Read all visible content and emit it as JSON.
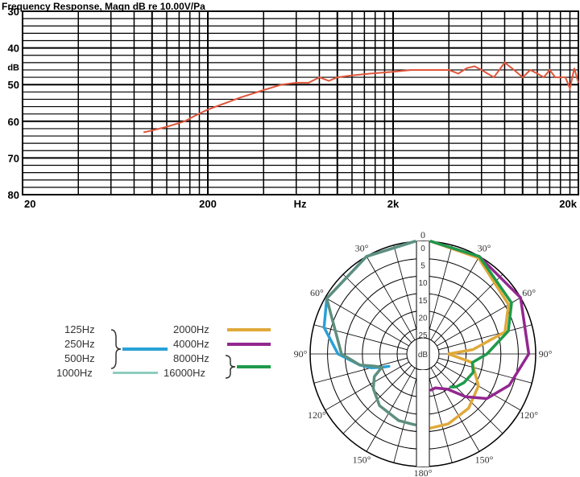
{
  "chart_data": [
    {
      "type": "line",
      "title": "Frequency Response, Magn dB re 10.00V/Pa",
      "xlabel": "Hz",
      "ylabel": "dB",
      "x_scale": "log",
      "xlim": [
        20,
        20000
      ],
      "ylim": [
        80,
        30
      ],
      "x_ticks": [
        "20",
        "200",
        "Hz",
        "2k",
        "20k"
      ],
      "y_ticks": [
        "30",
        "40",
        "dB",
        "50",
        "60",
        "70",
        "80"
      ],
      "grid": true,
      "color": "#e0563a",
      "series": [
        {
          "x": [
            90,
            100,
            120,
            150,
            170,
            200,
            250,
            300,
            400,
            500,
            600,
            700,
            800,
            900,
            1000,
            1200,
            1500,
            2000,
            2500,
            3000,
            3500,
            4000,
            4500,
            5000,
            5500,
            6000,
            7000,
            8000,
            9000,
            10000,
            11000,
            12000,
            13000,
            14000,
            15000,
            16000,
            17000,
            18000,
            19000,
            20000
          ],
          "y": [
            63,
            62.5,
            61.5,
            60,
            58.5,
            56.8,
            55,
            53.5,
            51.5,
            50,
            49.5,
            49.5,
            48,
            49,
            48,
            47.5,
            47,
            46.5,
            46,
            46,
            46,
            46,
            47,
            45.5,
            45,
            46,
            48,
            44,
            46,
            48,
            46,
            47,
            48,
            46,
            48,
            48,
            48,
            51,
            45.5,
            49.5
          ]
        }
      ]
    },
    {
      "type": "polar",
      "radial_unit": "dB",
      "radial_ticks": [
        "0",
        "5",
        "10",
        "15",
        "20",
        "25",
        "dB"
      ],
      "angle_labels": [
        "0",
        "30°",
        "60°",
        "90°",
        "120°",
        "150°",
        "180°",
        "150°",
        "120°",
        "90°",
        "60°",
        "30°"
      ],
      "series": [
        {
          "name": "125Hz, 250Hz, 500Hz",
          "color": "#2aa1d6",
          "side": "left",
          "points": [
            [
              0,
              0
            ],
            [
              30,
              0
            ],
            [
              60,
              0.5
            ],
            [
              75,
              3
            ],
            [
              90,
              8
            ],
            [
              100,
              14
            ],
            [
              105,
              17
            ],
            [
              108,
              20
            ],
            [
              110,
              22
            ]
          ]
        },
        {
          "name": "1000Hz",
          "color": "#5e8f7e",
          "side": "left",
          "points": [
            [
              0,
              0
            ],
            [
              30,
              0
            ],
            [
              60,
              0.5
            ],
            [
              90,
              9
            ],
            [
              100,
              14
            ],
            [
              104,
              18
            ],
            [
              108,
              20
            ],
            [
              115,
              17
            ],
            [
              125,
              15
            ],
            [
              140,
              13
            ],
            [
              160,
              12
            ],
            [
              178,
              12
            ]
          ]
        },
        {
          "name": "2000Hz",
          "color": "#e0a93a",
          "side": "right",
          "points": [
            [
              0,
              0
            ],
            [
              30,
              0.5
            ],
            [
              60,
              4
            ],
            [
              75,
              8
            ],
            [
              85,
              18
            ],
            [
              90,
              25
            ],
            [
              100,
              18
            ],
            [
              120,
              14
            ],
            [
              140,
              12
            ],
            [
              160,
              11
            ],
            [
              175,
              11
            ]
          ]
        },
        {
          "name": "4000Hz",
          "color": "#93278f",
          "side": "right",
          "points": [
            [
              0,
              0
            ],
            [
              30,
              0
            ],
            [
              60,
              0
            ],
            [
              90,
              2
            ],
            [
              110,
              6
            ],
            [
              125,
              10
            ],
            [
              135,
              15
            ],
            [
              145,
              20
            ],
            [
              160,
              22
            ],
            [
              178,
              22
            ]
          ]
        },
        {
          "name": "8000Hz, 16000Hz",
          "color": "#1f9a4b",
          "side": "right",
          "points": [
            [
              0,
              0
            ],
            [
              30,
              0
            ],
            [
              60,
              3
            ],
            [
              75,
              7
            ],
            [
              90,
              14
            ],
            [
              100,
              18
            ],
            [
              110,
              17
            ],
            [
              125,
              18
            ],
            [
              135,
              19
            ],
            [
              140,
              20
            ]
          ]
        }
      ]
    }
  ],
  "legend": {
    "left_labels": [
      "125Hz",
      "250Hz",
      "500Hz",
      "1000Hz"
    ],
    "right_labels": [
      "2000Hz",
      "4000Hz",
      "8000Hz",
      "16000Hz"
    ]
  }
}
